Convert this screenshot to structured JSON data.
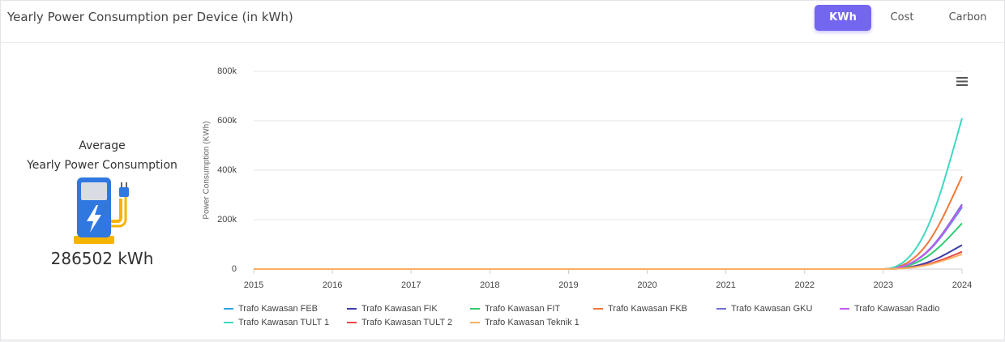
{
  "header": {
    "title": "Yearly Power Consumption per Device (in kWh)",
    "buttons": [
      "KWh",
      "Cost",
      "Carbon"
    ]
  },
  "summary": {
    "label_1": "Average",
    "label_2": "Yearly Power Consumption",
    "value": "286502 kWh"
  },
  "chart_data": {
    "type": "line",
    "y_axis_label": "Power Consumption (KWh)",
    "x": [
      2015,
      2016,
      2017,
      2018,
      2019,
      2020,
      2021,
      2022,
      2023,
      2024
    ],
    "xlim": [
      2015,
      2024
    ],
    "xticks": [
      2015,
      2016,
      2017,
      2018,
      2019,
      2020,
      2021,
      2022,
      2023,
      2024
    ],
    "ylim": [
      0,
      800000
    ],
    "yticks": [
      0,
      {
        "value": 200000,
        "label": "200k"
      },
      {
        "value": 400000,
        "label": "400k"
      },
      {
        "value": 600000,
        "label": "600k"
      },
      {
        "value": 800000,
        "label": "800k"
      }
    ],
    "grid": true,
    "legend": "bottom",
    "series": [
      {
        "name": "Trafo Kawasan FEB",
        "color": "#2ea3e0",
        "values": [
          0,
          0,
          0,
          0,
          0,
          0,
          0,
          0,
          0,
          250000
        ]
      },
      {
        "name": "Trafo Kawasan FIK",
        "color": "#3c3ca8",
        "values": [
          0,
          0,
          0,
          0,
          0,
          0,
          0,
          0,
          0,
          97000
        ]
      },
      {
        "name": "Trafo Kawasan FIT",
        "color": "#2ecc71",
        "values": [
          0,
          0,
          0,
          0,
          0,
          0,
          0,
          0,
          0,
          185000
        ]
      },
      {
        "name": "Trafo Kawasan FKB",
        "color": "#f07838",
        "values": [
          0,
          0,
          0,
          0,
          0,
          0,
          0,
          0,
          0,
          375000
        ]
      },
      {
        "name": "Trafo Kawasan GKU",
        "color": "#7070d0",
        "values": [
          0,
          0,
          0,
          0,
          0,
          0,
          0,
          0,
          0,
          262000
        ]
      },
      {
        "name": "Trafo Kawasan Radio",
        "color": "#c45cf0",
        "values": [
          0,
          0,
          0,
          0,
          0,
          0,
          0,
          0,
          0,
          255000
        ]
      },
      {
        "name": "Trafo Kawasan TULT 1",
        "color": "#40d8c0",
        "values": [
          0,
          0,
          0,
          0,
          0,
          0,
          0,
          0,
          0,
          610000
        ]
      },
      {
        "name": "Trafo Kawasan TULT 2",
        "color": "#e84848",
        "values": [
          0,
          0,
          0,
          0,
          0,
          0,
          0,
          0,
          0,
          70000
        ]
      },
      {
        "name": "Trafo Kawasan Teknik 1",
        "color": "#f8b060",
        "values": [
          0,
          0,
          0,
          0,
          0,
          0,
          0,
          0,
          0,
          60000
        ]
      }
    ]
  }
}
